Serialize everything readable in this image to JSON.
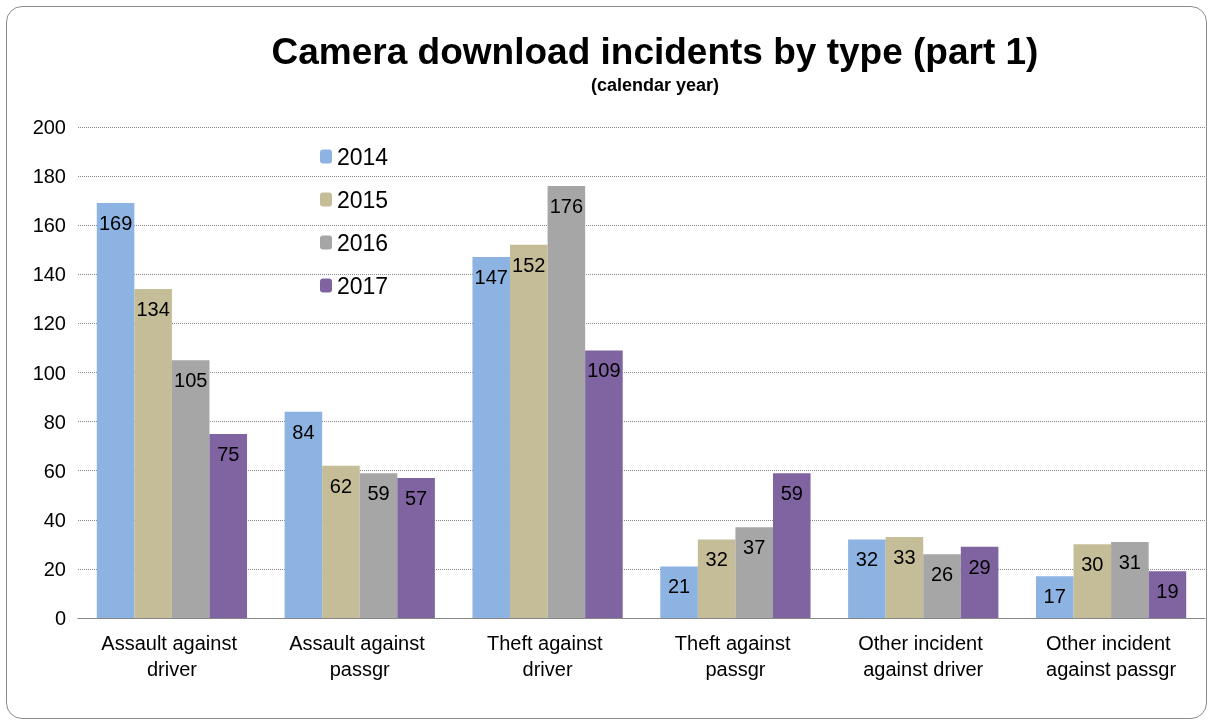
{
  "chart_data": {
    "type": "bar",
    "title": "Camera download incidents by type (part 1)",
    "subtitle": "(calendar year)",
    "categories": [
      "Assault against driver",
      "Assault against passgr",
      "Theft against driver",
      "Theft against passgr",
      "Other incident against driver",
      "Other incident against passgr"
    ],
    "series": [
      {
        "name": "2014",
        "color": "#8db3e2",
        "values": [
          169,
          84,
          147,
          21,
          32,
          17
        ]
      },
      {
        "name": "2015",
        "color": "#c4bd97",
        "values": [
          134,
          62,
          152,
          32,
          33,
          30
        ]
      },
      {
        "name": "2016",
        "color": "#a6a6a6",
        "values": [
          105,
          59,
          176,
          37,
          26,
          31
        ]
      },
      {
        "name": "2017",
        "color": "#8064a2",
        "values": [
          75,
          57,
          109,
          59,
          29,
          19
        ]
      }
    ],
    "ylim": [
      0,
      200
    ],
    "yticks": [
      0,
      20,
      40,
      60,
      80,
      100,
      120,
      140,
      160,
      180,
      200
    ],
    "grid": "y",
    "legend": "top left",
    "data_labels": true
  }
}
